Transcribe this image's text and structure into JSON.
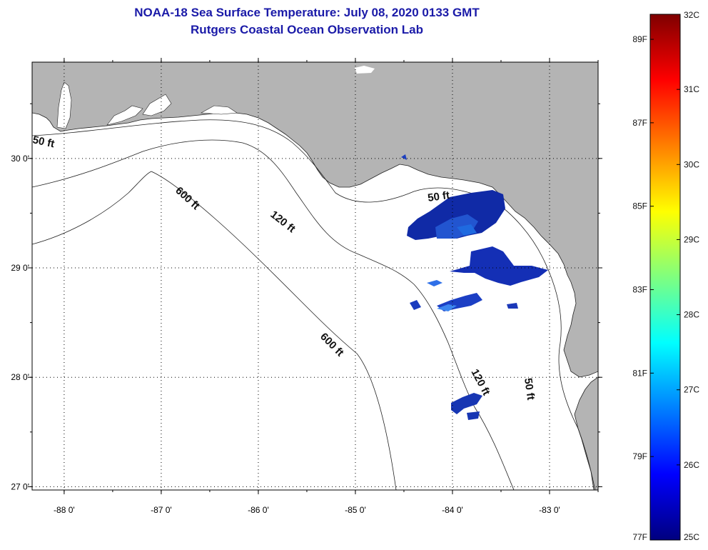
{
  "header": {
    "title_line1": "NOAA-18 Sea Surface Temperature:  July 08, 2020 0133 GMT",
    "title_line2": "Rutgers Coastal Ocean Observation Lab"
  },
  "map": {
    "lon_range": [
      -88.33,
      -82.5
    ],
    "lat_range": [
      26.97,
      30.88
    ],
    "lon_ticks": [
      -88,
      -87,
      -86,
      -85,
      -84,
      -83
    ],
    "lat_ticks": [
      27,
      28,
      29,
      30
    ],
    "lon_labels": [
      "-88 0'",
      "-87 0'",
      "-86 0'",
      "-85 0'",
      "-84 0'",
      "-83 0'"
    ],
    "lat_labels": [
      "27 0'",
      "28 0'",
      "29 0'",
      "30 0'"
    ],
    "grid": "dotted",
    "land_color": "#b4b4b4",
    "water_color": "#ffffff",
    "contour_labels": {
      "c50_west": "50 ft",
      "c50_east": "50 ft",
      "c50_south": "50 ft",
      "c120_west": "120 ft",
      "c120_south": "120 ft",
      "c600_north": "600 ft",
      "c600_south": "600 ft"
    }
  },
  "colorbar": {
    "colors": [
      "#00007f",
      "#0000ff",
      "#007fff",
      "#00ffff",
      "#7fff7f",
      "#ffff00",
      "#ff7f00",
      "#ff0000",
      "#7f0000"
    ],
    "celsius_ticks": [
      25,
      26,
      27,
      28,
      29,
      30,
      31,
      32
    ],
    "celsius_labels": [
      "25C",
      "26C",
      "27C",
      "28C",
      "29C",
      "30C",
      "31C",
      "32C"
    ],
    "fahrenheit_ticks": [
      77,
      79,
      81,
      83,
      85,
      87,
      89
    ],
    "fahrenheit_labels": [
      "77F",
      "79F",
      "81F",
      "83F",
      "85F",
      "87F",
      "89F"
    ]
  }
}
